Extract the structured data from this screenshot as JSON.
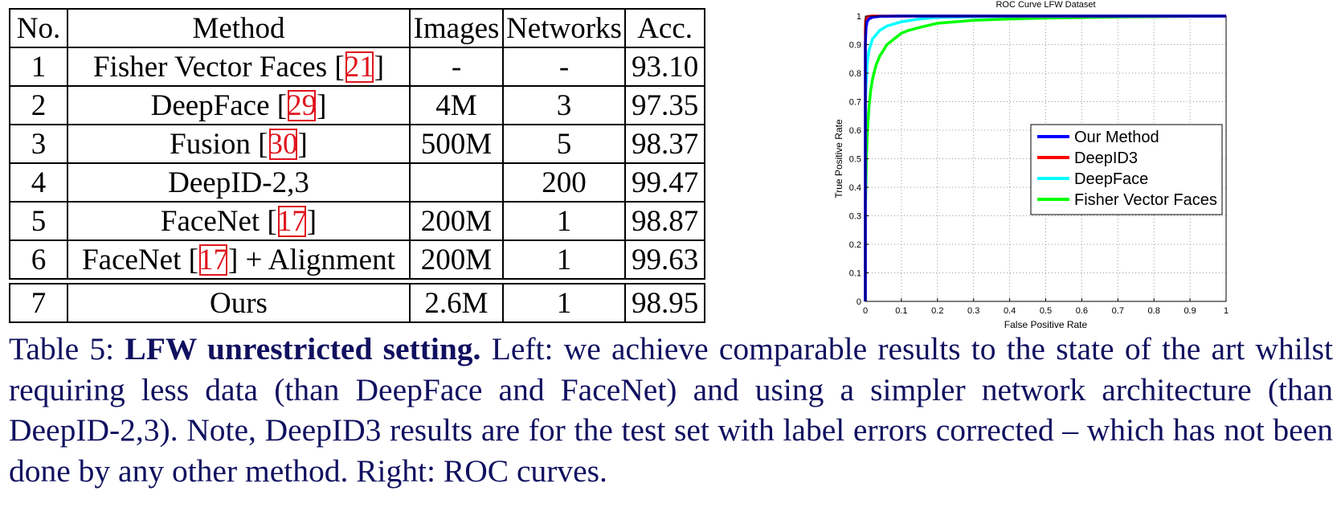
{
  "table": {
    "headers": [
      "No.",
      "Method",
      "Images",
      "Networks",
      "Acc."
    ],
    "rows": [
      {
        "no": "1",
        "method": "Fisher Vector Faces [",
        "cite": "21",
        "method_suffix": "]",
        "images": "-",
        "networks": "-",
        "acc": "93.10"
      },
      {
        "no": "2",
        "method": "DeepFace [",
        "cite": "29",
        "method_suffix": "]",
        "images": "4M",
        "networks": "3",
        "acc": "97.35"
      },
      {
        "no": "3",
        "method": "Fusion [",
        "cite": "30",
        "method_suffix": "]",
        "images": "500M",
        "networks": "5",
        "acc": "98.37"
      },
      {
        "no": "4",
        "method": "DeepID-2,3",
        "cite": "",
        "method_suffix": "",
        "images": "",
        "networks": "200",
        "acc": "99.47"
      },
      {
        "no": "5",
        "method": "FaceNet [",
        "cite": "17",
        "method_suffix": "]",
        "images": "200M",
        "networks": "1",
        "acc": "98.87"
      },
      {
        "no": "6",
        "method": "FaceNet [",
        "cite": "17",
        "method_suffix": "] + Alignment",
        "images": "200M",
        "networks": "1",
        "acc": "99.63"
      },
      {
        "no": "7",
        "method": "Ours",
        "cite": "",
        "method_suffix": "",
        "images": "2.6M",
        "networks": "1",
        "acc": "98.95"
      }
    ]
  },
  "caption": {
    "label": "Table 5: ",
    "bold": "LFW unrestricted setting.",
    "text": " Left: we achieve comparable results to the state of the art whilst requiring less data (than DeepFace and FaceNet) and using a simpler network architecture (than DeepID-2,3). Note, DeepID3 results are for the test set with label errors corrected – which has not been done by any other method. Right: ROC curves."
  },
  "chart_data": {
    "type": "line",
    "title": "ROC Curve LFW Dataset",
    "xlabel": "False Positive Rate",
    "ylabel": "True Positive Rate",
    "xlim": [
      0,
      1
    ],
    "ylim": [
      0,
      1
    ],
    "xticks": [
      "0",
      "0.1",
      "0.2",
      "0.3",
      "0.4",
      "0.5",
      "0.6",
      "0.7",
      "0.8",
      "0.9",
      "1"
    ],
    "yticks": [
      "0",
      "0.1",
      "0.2",
      "0.3",
      "0.4",
      "0.5",
      "0.6",
      "0.7",
      "0.8",
      "0.9",
      "1"
    ],
    "grid": true,
    "legend_position": "right",
    "series": [
      {
        "name": "Our Method",
        "color": "#0000ff",
        "x": [
          0,
          0,
          0.002,
          0.005,
          0.01,
          0.02,
          0.04,
          0.1,
          1
        ],
        "y": [
          0,
          0.9,
          0.96,
          0.98,
          0.99,
          0.996,
          0.999,
          1,
          1
        ]
      },
      {
        "name": "DeepID3",
        "color": "#ff0000",
        "x": [
          0,
          0,
          0.001,
          0.003,
          0.006,
          0.01,
          0.02,
          1
        ],
        "y": [
          0,
          0.95,
          0.985,
          0.995,
          0.998,
          0.999,
          1,
          1
        ]
      },
      {
        "name": "DeepFace",
        "color": "#00ffff",
        "x": [
          0,
          0,
          0.005,
          0.01,
          0.02,
          0.04,
          0.06,
          0.1,
          0.15,
          0.2,
          0.3,
          0.5,
          1
        ],
        "y": [
          0,
          0.7,
          0.83,
          0.88,
          0.92,
          0.95,
          0.965,
          0.98,
          0.99,
          0.995,
          0.998,
          1,
          1
        ]
      },
      {
        "name": "Fisher Vector Faces",
        "color": "#00ff00",
        "x": [
          0,
          0,
          0.003,
          0.006,
          0.01,
          0.015,
          0.02,
          0.03,
          0.04,
          0.05,
          0.06,
          0.08,
          0.1,
          0.12,
          0.15,
          0.2,
          0.25,
          0.3,
          0.4,
          0.5,
          0.6,
          0.7,
          0.8,
          0.9,
          1
        ],
        "y": [
          0,
          0.3,
          0.5,
          0.6,
          0.68,
          0.74,
          0.78,
          0.83,
          0.86,
          0.88,
          0.9,
          0.92,
          0.94,
          0.95,
          0.96,
          0.975,
          0.98,
          0.985,
          0.99,
          0.993,
          0.995,
          0.997,
          0.998,
          0.999,
          1
        ]
      }
    ]
  }
}
